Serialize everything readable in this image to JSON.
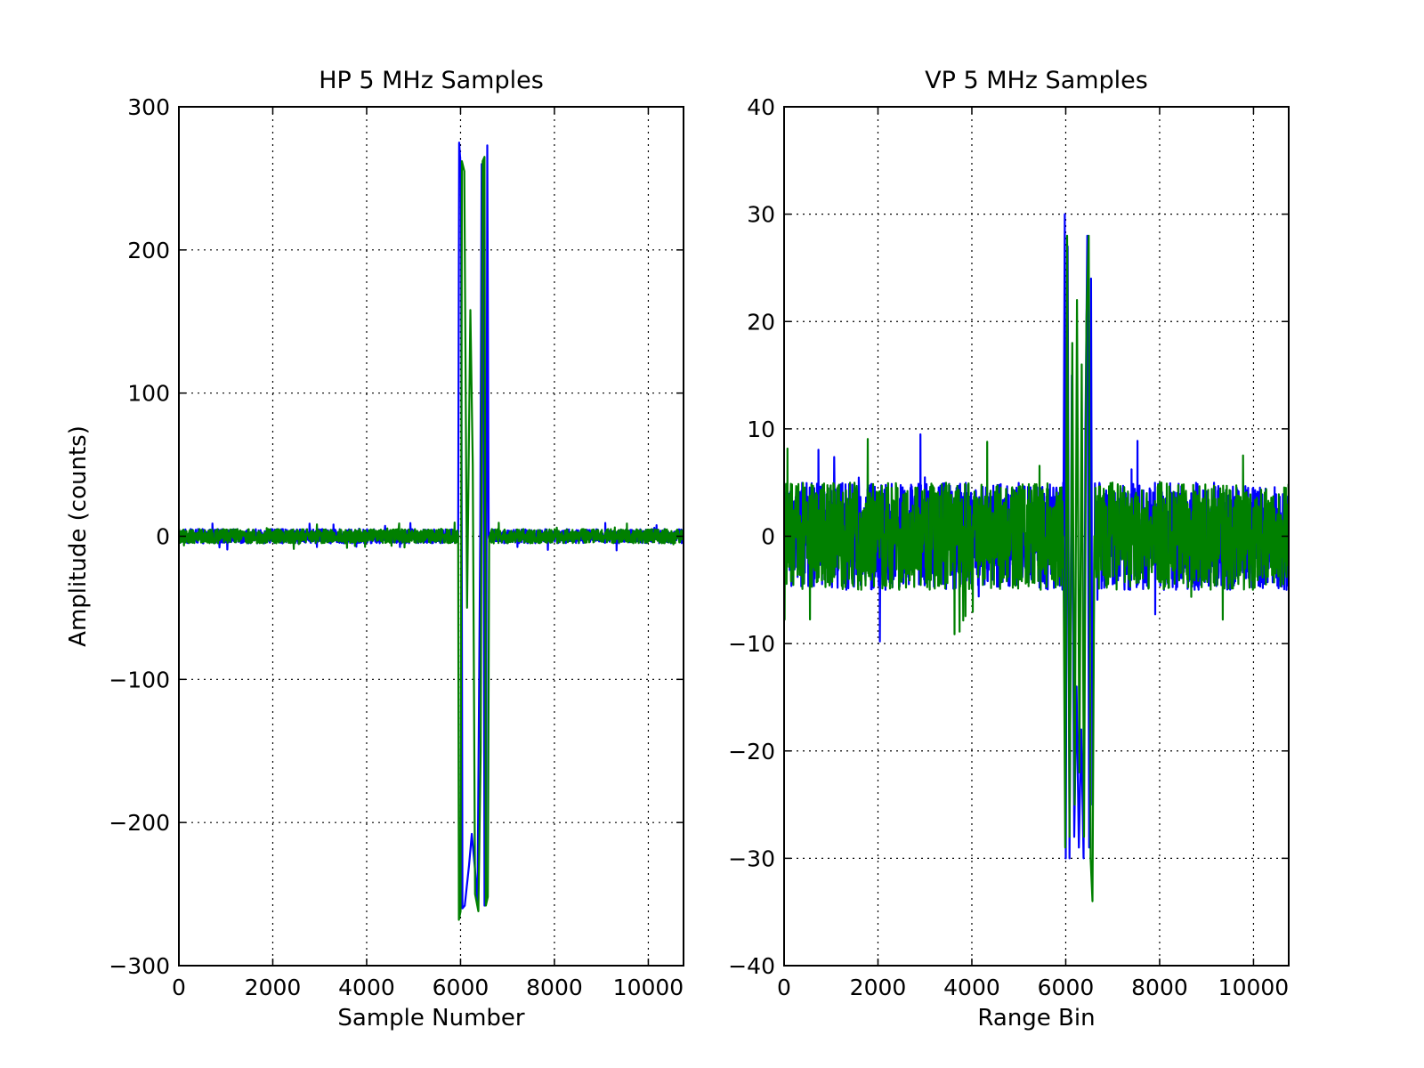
{
  "chart_data": [
    {
      "type": "line",
      "title": "HP 5 MHz Samples",
      "xlabel": "Sample Number",
      "ylabel": "Amplitude (counts)",
      "xlim": [
        0,
        10750
      ],
      "ylim": [
        -300,
        300
      ],
      "xticks": [
        "0",
        "2000",
        "4000",
        "6000",
        "8000",
        "10000"
      ],
      "yticks": [
        "300",
        "200",
        "100",
        "0",
        "−100",
        "−200",
        "−300"
      ],
      "grid": true,
      "noise_amplitude": 5,
      "series": [
        {
          "color": "#0000ff",
          "points": [
            [
              5950,
              0
            ],
            [
              5970,
              275
            ],
            [
              6010,
              255
            ],
            [
              6040,
              -260
            ],
            [
              6090,
              -258
            ],
            [
              6180,
              -230
            ],
            [
              6240,
              -208
            ],
            [
              6300,
              -230
            ],
            [
              6360,
              -255
            ],
            [
              6420,
              0
            ],
            [
              6450,
              260
            ],
            [
              6480,
              258
            ],
            [
              6510,
              -258
            ],
            [
              6540,
              -255
            ],
            [
              6570,
              273
            ],
            [
              6600,
              0
            ]
          ]
        },
        {
          "color": "#008000",
          "points": [
            [
              5950,
              0
            ],
            [
              5965,
              -268
            ],
            [
              6000,
              -262
            ],
            [
              6030,
              262
            ],
            [
              6080,
              255
            ],
            [
              6140,
              -50
            ],
            [
              6210,
              158
            ],
            [
              6260,
              50
            ],
            [
              6310,
              -250
            ],
            [
              6380,
              -262
            ],
            [
              6430,
              -150
            ],
            [
              6470,
              262
            ],
            [
              6510,
              265
            ],
            [
              6540,
              -258
            ],
            [
              6580,
              -252
            ],
            [
              6610,
              0
            ]
          ]
        }
      ]
    },
    {
      "type": "line",
      "title": "VP 5 MHz Samples",
      "xlabel": "Range Bin",
      "ylabel": "",
      "xlim": [
        0,
        10750
      ],
      "ylim": [
        -40,
        40
      ],
      "xticks": [
        "0",
        "2000",
        "4000",
        "6000",
        "8000",
        "10000"
      ],
      "yticks": [
        "40",
        "30",
        "20",
        "10",
        "0",
        "−10",
        "−20",
        "−30",
        "−40"
      ],
      "grid": true,
      "noise_amplitude": 5,
      "series": [
        {
          "color": "#0000ff",
          "points": [
            [
              5950,
              0
            ],
            [
              5980,
              30
            ],
            [
              6000,
              -30
            ],
            [
              6040,
              27
            ],
            [
              6080,
              -30
            ],
            [
              6130,
              15
            ],
            [
              6180,
              -28
            ],
            [
              6230,
              -14
            ],
            [
              6280,
              -29
            ],
            [
              6330,
              -18
            ],
            [
              6380,
              -30
            ],
            [
              6420,
              10
            ],
            [
              6460,
              28
            ],
            [
              6500,
              -29
            ],
            [
              6540,
              24
            ],
            [
              6570,
              -25
            ],
            [
              6610,
              0
            ]
          ]
        },
        {
          "color": "#008000",
          "points": [
            [
              5950,
              0
            ],
            [
              5990,
              -29
            ],
            [
              6030,
              28
            ],
            [
              6080,
              -28
            ],
            [
              6140,
              18
            ],
            [
              6190,
              -25
            ],
            [
              6240,
              22
            ],
            [
              6290,
              -22
            ],
            [
              6340,
              16
            ],
            [
              6390,
              -28
            ],
            [
              6440,
              20
            ],
            [
              6490,
              28
            ],
            [
              6530,
              -30
            ],
            [
              6570,
              -34
            ],
            [
              6610,
              0
            ]
          ]
        }
      ]
    }
  ]
}
